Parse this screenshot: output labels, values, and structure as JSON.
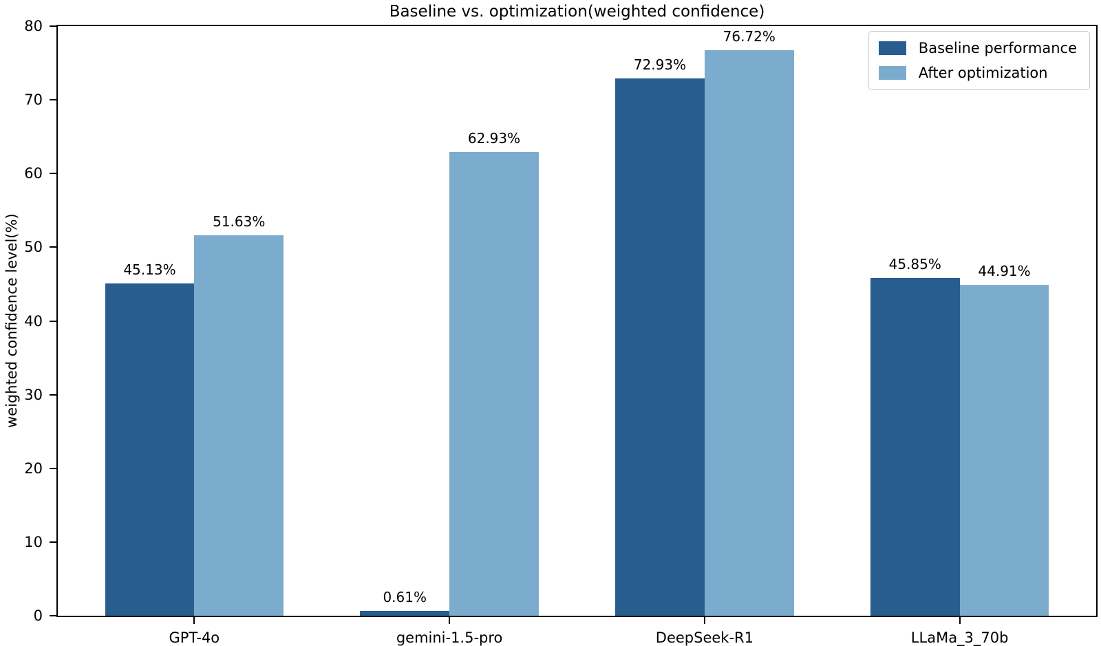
{
  "chart_data": {
    "type": "bar",
    "title": "Baseline vs. optimization(weighted confidence)",
    "xlabel": "",
    "ylabel": "weighted confidence level(%)",
    "categories": [
      "GPT-4o",
      "gemini-1.5-pro",
      "DeepSeek-R1",
      "LLaMa_3_70b"
    ],
    "series": [
      {
        "name": "Baseline performance",
        "color": "#285D8F",
        "values": [
          45.13,
          0.61,
          72.93,
          45.85
        ],
        "value_labels": [
          "45.13%",
          "0.61%",
          "72.93%",
          "45.85%"
        ]
      },
      {
        "name": "After optimization",
        "color": "#7CACCD",
        "values": [
          51.63,
          62.93,
          76.72,
          44.91
        ],
        "value_labels": [
          "51.63%",
          "62.93%",
          "76.72%",
          "44.91%"
        ]
      }
    ],
    "ylim": [
      0,
      80
    ],
    "yticks": [
      0,
      10,
      20,
      30,
      40,
      50,
      60,
      70,
      80
    ],
    "grid": false,
    "legend_position": "upper right",
    "colors": {
      "axis": "#000000",
      "background": "#ffffff",
      "legend_border": "#cccccc"
    }
  }
}
